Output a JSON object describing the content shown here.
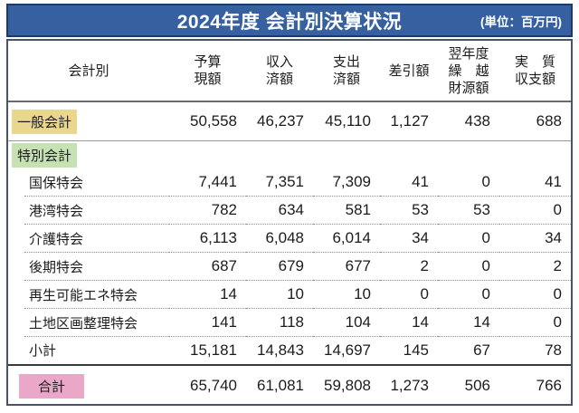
{
  "header": {
    "title": "2024年度 会計別決算状況",
    "unit": "(単位：百万円)",
    "band_color": "#36609f"
  },
  "colors": {
    "general_badge": "#e8d78c",
    "special_badge": "#c6e2b5",
    "total_badge": "#eba7c7",
    "band_blue": "#36609f",
    "table_border": "#4a5366"
  },
  "table": {
    "columns": [
      {
        "id": "account",
        "lines": [
          "会計別"
        ]
      },
      {
        "id": "budget",
        "lines": [
          "予算",
          "現額"
        ]
      },
      {
        "id": "revenue",
        "lines": [
          "収入",
          "済額"
        ]
      },
      {
        "id": "expenditure",
        "lines": [
          "支出",
          "済額"
        ]
      },
      {
        "id": "balance",
        "lines": [
          "差引額"
        ]
      },
      {
        "id": "carryover",
        "lines": [
          "翌年度",
          "繰　越",
          "財源額"
        ]
      },
      {
        "id": "net",
        "lines": [
          "実　質",
          "収支額"
        ]
      }
    ],
    "rows": [
      {
        "label": "一般会計",
        "values": [
          "50,558",
          "46,237",
          "45,110",
          "1,127",
          "438",
          "688"
        ]
      },
      {
        "label": "特別会計",
        "values": []
      },
      {
        "label": "国保特会",
        "values": [
          "7,441",
          "7,351",
          "7,309",
          "41",
          "0",
          "41"
        ]
      },
      {
        "label": "港湾特会",
        "values": [
          "782",
          "634",
          "581",
          "53",
          "53",
          "0"
        ]
      },
      {
        "label": "介護特会",
        "values": [
          "6,113",
          "6,048",
          "6,014",
          "34",
          "0",
          "34"
        ]
      },
      {
        "label": "後期特会",
        "values": [
          "687",
          "679",
          "677",
          "2",
          "0",
          "2"
        ]
      },
      {
        "label": "再生可能エネ特会",
        "values": [
          "14",
          "10",
          "10",
          "0",
          "0",
          "0"
        ]
      },
      {
        "label": "土地区画整理特会",
        "values": [
          "141",
          "118",
          "104",
          "14",
          "14",
          "0"
        ]
      },
      {
        "label": "小計",
        "values": [
          "15,181",
          "14,843",
          "14,697",
          "145",
          "67",
          "78"
        ]
      },
      {
        "label": "合計",
        "values": [
          "65,740",
          "61,081",
          "59,808",
          "1,273",
          "506",
          "766"
        ]
      }
    ]
  }
}
